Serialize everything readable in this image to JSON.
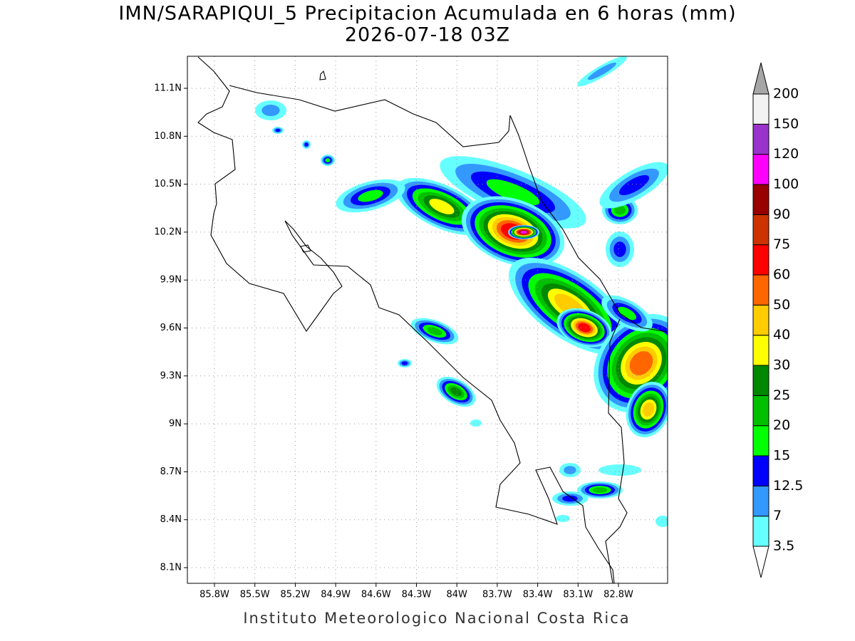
{
  "title": "IMN/SARAPIQUI_5 Precipitacion Acumulada en 6 horas (mm)",
  "subtitle": "2026-07-18 03Z",
  "footer": "Instituto Meteorologico Nacional Costa Rica",
  "map": {
    "lon_labels": [
      "85.8W",
      "85.5W",
      "85.2W",
      "84.9W",
      "84.6W",
      "84.3W",
      "84W",
      "83.7W",
      "83.4W",
      "83.1W",
      "82.8W"
    ],
    "lat_labels": [
      "11.1N",
      "10.8N",
      "10.5N",
      "10.2N",
      "9.9N",
      "9.6N",
      "9.3N",
      "9N",
      "8.7N",
      "8.4N",
      "8.1N"
    ]
  },
  "colorbar": {
    "levels": [
      3.5,
      7,
      12.5,
      15,
      20,
      25,
      30,
      40,
      50,
      60,
      75,
      90,
      100,
      120,
      150,
      200
    ],
    "colors": [
      "#66ffff",
      "#3399ff",
      "#0000ff",
      "#00ff00",
      "#00c000",
      "#008800",
      "#ffff00",
      "#ffcc00",
      "#ff6600",
      "#ff0000",
      "#cc3300",
      "#990000",
      "#ff00ff",
      "#9933cc",
      "#f2f2f2"
    ],
    "over_color": "#a6a6a6",
    "under_color": "#ffffff"
  }
}
